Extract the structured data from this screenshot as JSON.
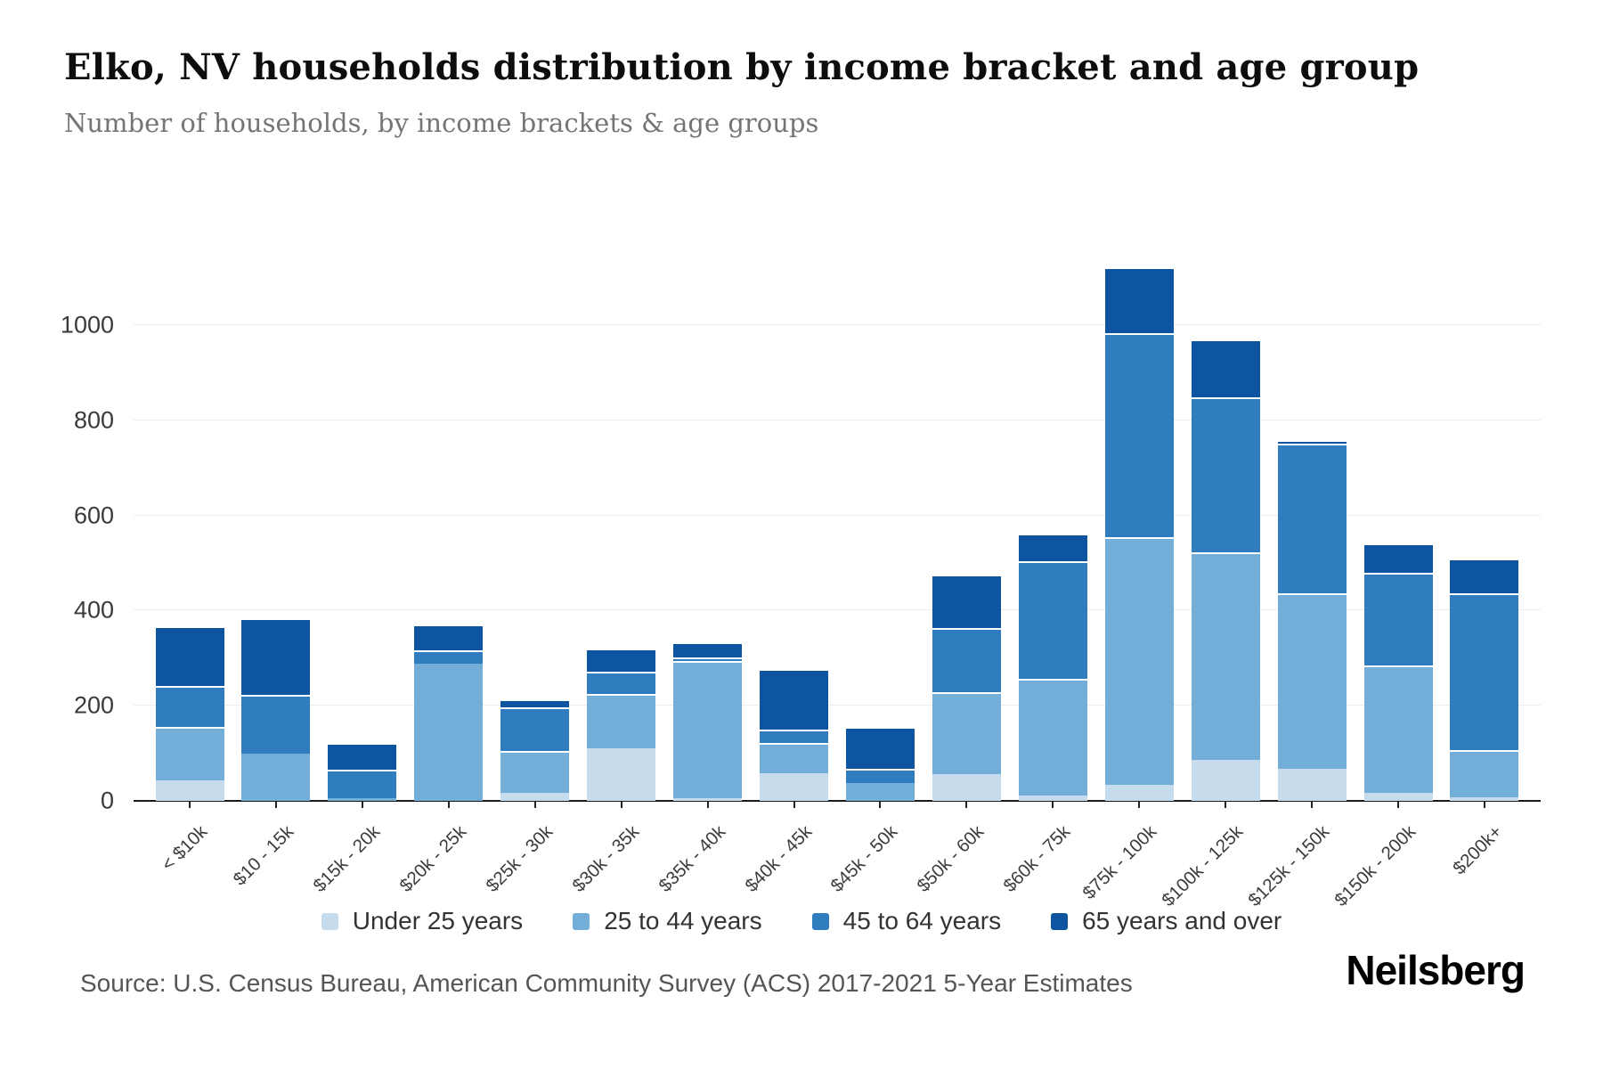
{
  "header": {
    "title": "Elko, NV households distribution by income bracket and age group",
    "subtitle": "Number of households, by income brackets & age groups"
  },
  "chart_data": {
    "type": "bar",
    "stacked": true,
    "title": "Elko, NV households distribution by income bracket and age group",
    "subtitle": "Number of households, by income brackets & age groups",
    "categories": [
      "< $10k",
      "$10 - 15k",
      "$15k - 20k",
      "$20k - 25k",
      "$25k - 30k",
      "$30k - 35k",
      "$35k - 40k",
      "$40k - 45k",
      "$45k - 50k",
      "$50k - 60k",
      "$60k - 75k",
      "$75k - 100k",
      "$100k - 125k",
      "$125k - 150k",
      "$150k - 200k",
      "$200k+"
    ],
    "series": [
      {
        "name": "Under 25 years",
        "color": "#c6dbec",
        "values": [
          43,
          0,
          0,
          0,
          17,
          111,
          6,
          58,
          0,
          56,
          11,
          33,
          87,
          68,
          17,
          8
        ]
      },
      {
        "name": "25 to 44 years",
        "color": "#72aed8",
        "values": [
          112,
          99,
          5,
          289,
          88,
          113,
          288,
          64,
          38,
          173,
          246,
          521,
          436,
          368,
          268,
          98
        ]
      },
      {
        "name": "45 to 64 years",
        "color": "#2f7dbe",
        "values": [
          87,
          124,
          60,
          27,
          91,
          48,
          7,
          27,
          30,
          134,
          246,
          429,
          325,
          314,
          194,
          330
        ]
      },
      {
        "name": "65 years and over",
        "color": "#0d55a1",
        "values": [
          125,
          161,
          56,
          54,
          17,
          48,
          33,
          129,
          88,
          113,
          59,
          138,
          121,
          9,
          62,
          73
        ]
      }
    ],
    "totals": [
      367,
      384,
      121,
      370,
      213,
      320,
      334,
      278,
      156,
      476,
      562,
      1121,
      969,
      759,
      541,
      509
    ],
    "xlabel": "",
    "ylabel": "",
    "yticks": [
      0,
      200,
      400,
      600,
      800,
      1000
    ],
    "ymax": 1200,
    "grid": true,
    "legend_position": "bottom"
  },
  "footer": {
    "source": "Source: U.S. Census Bureau, American Community Survey (ACS) 2017-2021 5-Year Estimates",
    "brand": "Neilsberg"
  }
}
